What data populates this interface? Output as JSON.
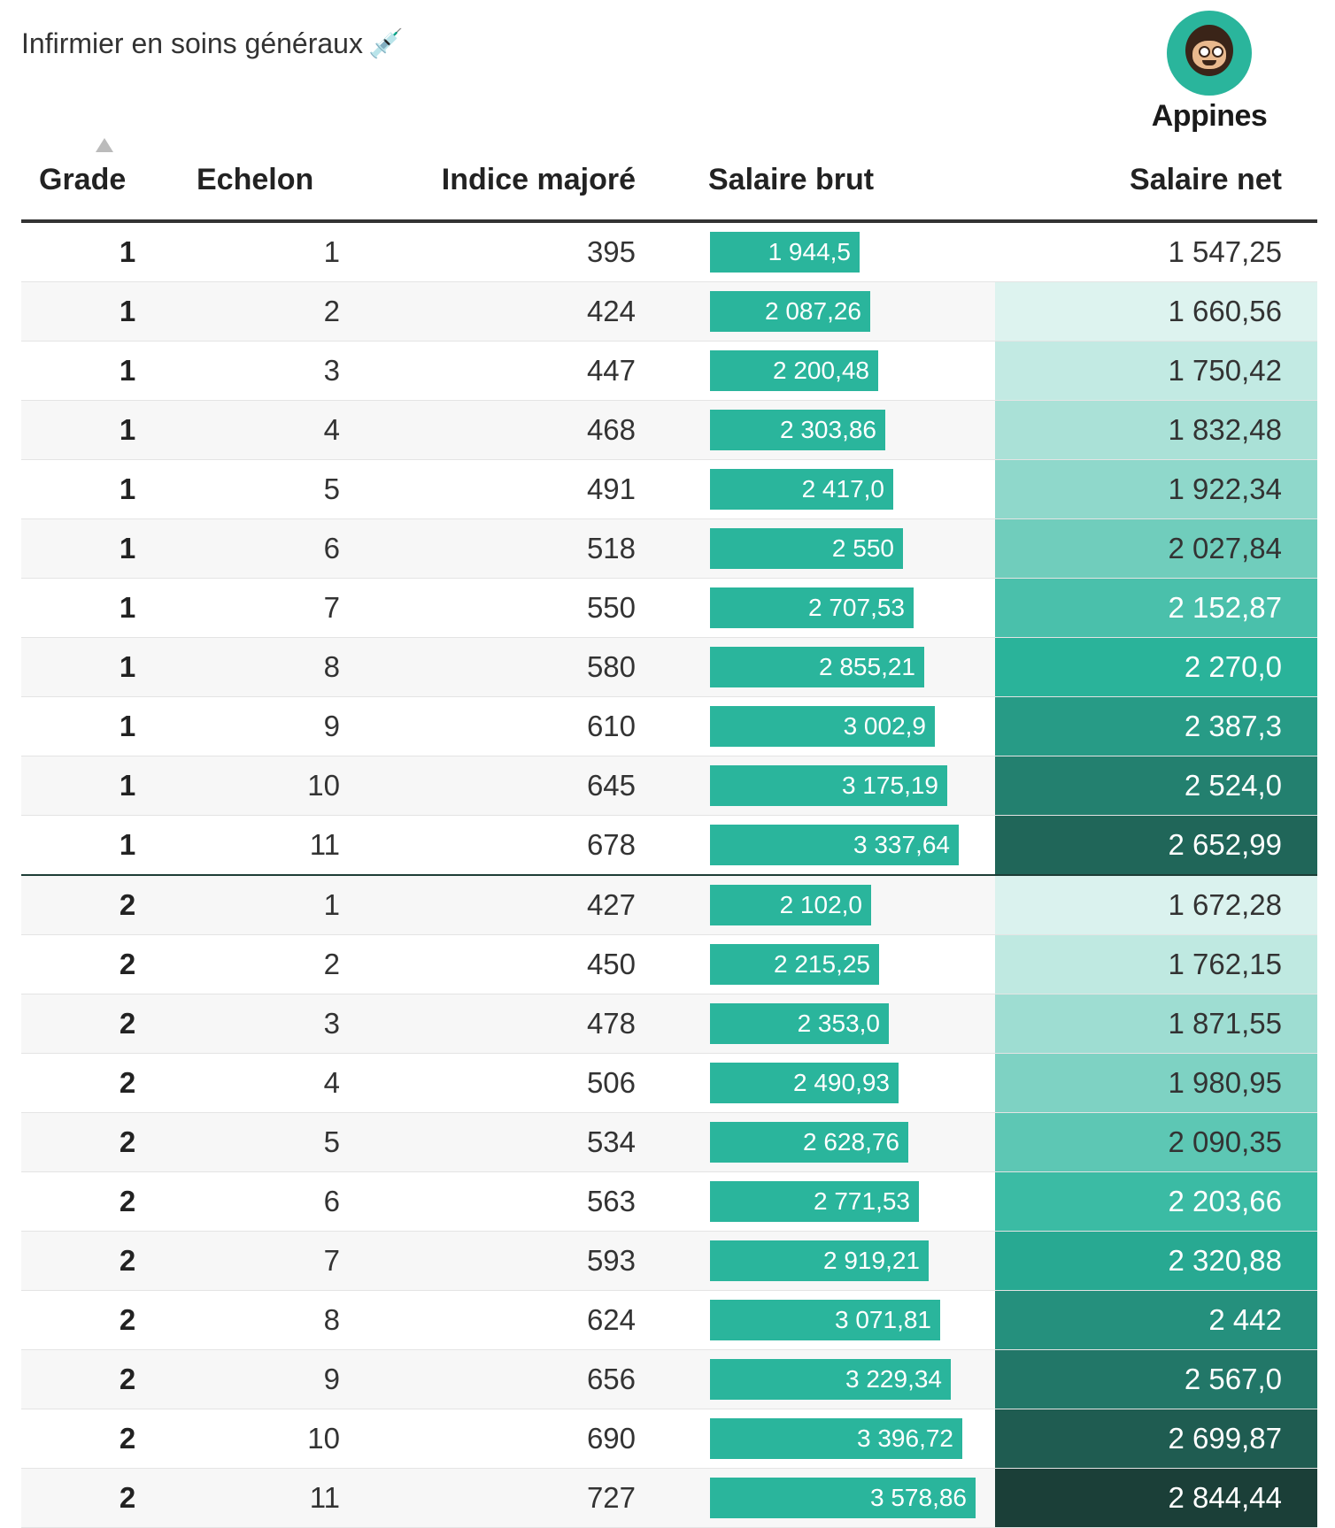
{
  "subtitle": "Infirmier en soins généraux",
  "subtitle_icon": "syringe-icon",
  "logo": {
    "text": "Appines",
    "color": "#2ab59c"
  },
  "columns": {
    "grade": "Grade",
    "echelon": "Echelon",
    "indice": "Indice majoré",
    "brut": "Salaire brut",
    "net": "Salaire net"
  },
  "colors": {
    "bar": "#2ab59c",
    "net_low": "#ffffff",
    "net_high": "#1b3f38"
  },
  "rows": [
    {
      "grade": "1",
      "echelon": "1",
      "indice": "395",
      "brut": "1 944,5",
      "brut_value": 1944.5,
      "net": "1 547,25",
      "net_value": 1547.25
    },
    {
      "grade": "1",
      "echelon": "2",
      "indice": "424",
      "brut": "2 087,26",
      "brut_value": 2087.26,
      "net": "1 660,56",
      "net_value": 1660.56
    },
    {
      "grade": "1",
      "echelon": "3",
      "indice": "447",
      "brut": "2 200,48",
      "brut_value": 2200.48,
      "net": "1 750,42",
      "net_value": 1750.42
    },
    {
      "grade": "1",
      "echelon": "4",
      "indice": "468",
      "brut": "2 303,86",
      "brut_value": 2303.86,
      "net": "1 832,48",
      "net_value": 1832.48
    },
    {
      "grade": "1",
      "echelon": "5",
      "indice": "491",
      "brut": "2 417,0",
      "brut_value": 2417.0,
      "net": "1 922,34",
      "net_value": 1922.34
    },
    {
      "grade": "1",
      "echelon": "6",
      "indice": "518",
      "brut": "2 550",
      "brut_value": 2550,
      "net": "2 027,84",
      "net_value": 2027.84
    },
    {
      "grade": "1",
      "echelon": "7",
      "indice": "550",
      "brut": "2 707,53",
      "brut_value": 2707.53,
      "net": "2 152,87",
      "net_value": 2152.87
    },
    {
      "grade": "1",
      "echelon": "8",
      "indice": "580",
      "brut": "2 855,21",
      "brut_value": 2855.21,
      "net": "2 270,0",
      "net_value": 2270.0
    },
    {
      "grade": "1",
      "echelon": "9",
      "indice": "610",
      "brut": "3 002,9",
      "brut_value": 3002.9,
      "net": "2 387,3",
      "net_value": 2387.3
    },
    {
      "grade": "1",
      "echelon": "10",
      "indice": "645",
      "brut": "3 175,19",
      "brut_value": 3175.19,
      "net": "2 524,0",
      "net_value": 2524.0
    },
    {
      "grade": "1",
      "echelon": "11",
      "indice": "678",
      "brut": "3 337,64",
      "brut_value": 3337.64,
      "net": "2 652,99",
      "net_value": 2652.99
    },
    {
      "grade": "2",
      "echelon": "1",
      "indice": "427",
      "brut": "2 102,0",
      "brut_value": 2102.0,
      "net": "1 672,28",
      "net_value": 1672.28
    },
    {
      "grade": "2",
      "echelon": "2",
      "indice": "450",
      "brut": "2 215,25",
      "brut_value": 2215.25,
      "net": "1 762,15",
      "net_value": 1762.15
    },
    {
      "grade": "2",
      "echelon": "3",
      "indice": "478",
      "brut": "2 353,0",
      "brut_value": 2353.0,
      "net": "1 871,55",
      "net_value": 1871.55
    },
    {
      "grade": "2",
      "echelon": "4",
      "indice": "506",
      "brut": "2 490,93",
      "brut_value": 2490.93,
      "net": "1 980,95",
      "net_value": 1980.95
    },
    {
      "grade": "2",
      "echelon": "5",
      "indice": "534",
      "brut": "2 628,76",
      "brut_value": 2628.76,
      "net": "2 090,35",
      "net_value": 2090.35
    },
    {
      "grade": "2",
      "echelon": "6",
      "indice": "563",
      "brut": "2 771,53",
      "brut_value": 2771.53,
      "net": "2 203,66",
      "net_value": 2203.66
    },
    {
      "grade": "2",
      "echelon": "7",
      "indice": "593",
      "brut": "2 919,21",
      "brut_value": 2919.21,
      "net": "2 320,88",
      "net_value": 2320.88
    },
    {
      "grade": "2",
      "echelon": "8",
      "indice": "624",
      "brut": "3 071,81",
      "brut_value": 3071.81,
      "net": "2 442",
      "net_value": 2442
    },
    {
      "grade": "2",
      "echelon": "9",
      "indice": "656",
      "brut": "3 229,34",
      "brut_value": 3229.34,
      "net": "2 567,0",
      "net_value": 2567.0
    },
    {
      "grade": "2",
      "echelon": "10",
      "indice": "690",
      "brut": "3 396,72",
      "brut_value": 3396.72,
      "net": "2 699,87",
      "net_value": 2699.87
    },
    {
      "grade": "2",
      "echelon": "11",
      "indice": "727",
      "brut": "3 578,86",
      "brut_value": 3578.86,
      "net": "2 844,44",
      "net_value": 2844.44
    }
  ]
}
